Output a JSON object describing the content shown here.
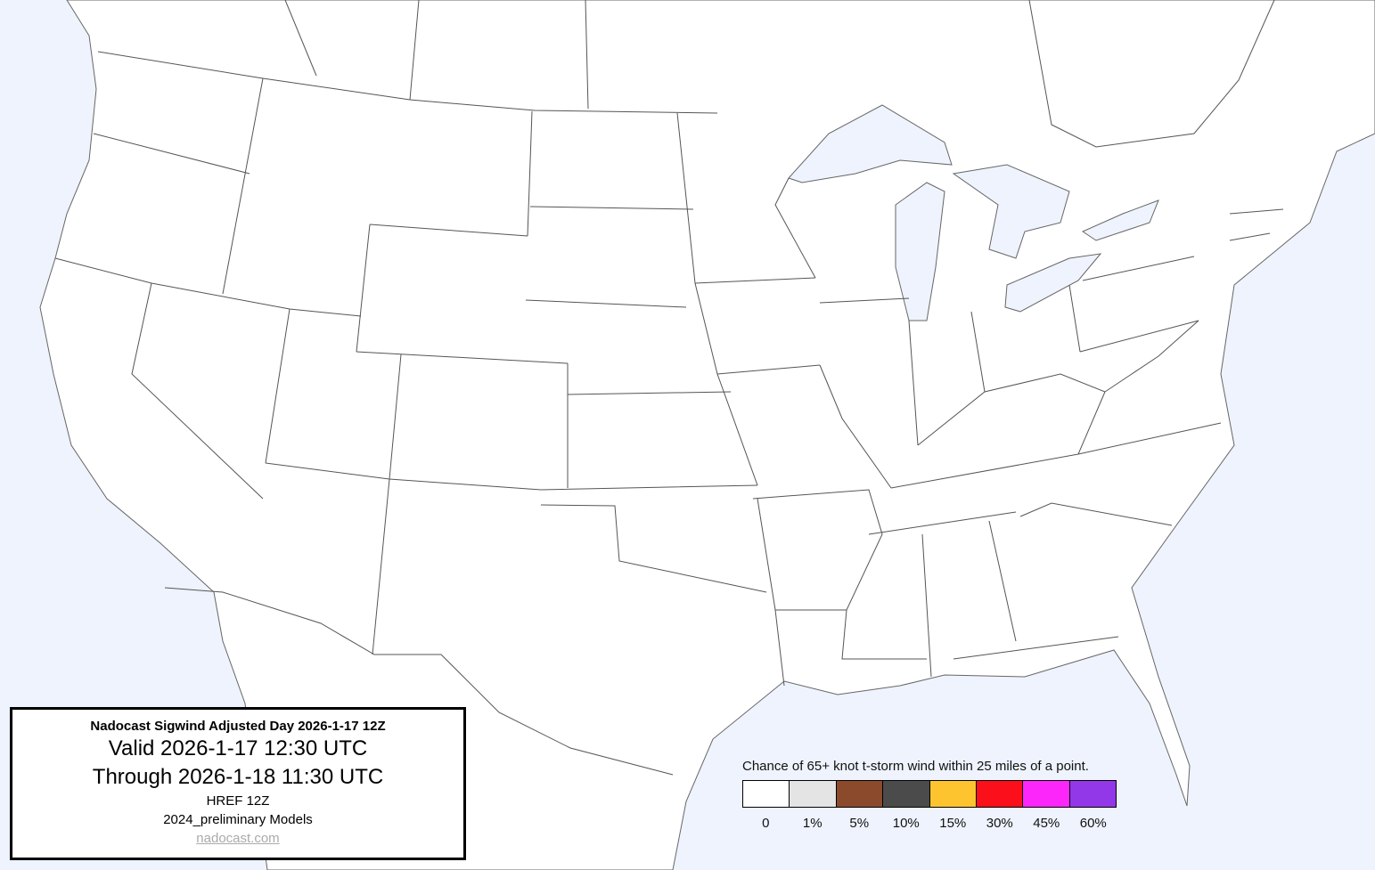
{
  "info_box": {
    "title": "Nadocast Sigwind Adjusted Day 2026-1-17 12Z",
    "valid": "Valid 2026-1-17 12:30 UTC",
    "through": "Through 2026-1-18 11:30 UTC",
    "model_run": "HREF 12Z",
    "models": "2024_preliminary Models",
    "link": "nadocast.com"
  },
  "legend": {
    "title": "Chance of 65+ knot t-storm wind within 25 miles of a point.",
    "bins": [
      {
        "label": "0",
        "color": "#ffffff"
      },
      {
        "label": "1%",
        "color": "#e4e4e4"
      },
      {
        "label": "5%",
        "color": "#8b4a2b"
      },
      {
        "label": "10%",
        "color": "#4b4b4b"
      },
      {
        "label": "15%",
        "color": "#fec42f"
      },
      {
        "label": "30%",
        "color": "#fb0f1b"
      },
      {
        "label": "45%",
        "color": "#fc26fb"
      },
      {
        "label": "60%",
        "color": "#9338e8"
      }
    ]
  },
  "colors": {
    "water": "#eef3fd",
    "land": "#ffffff",
    "borders": "#555555"
  }
}
